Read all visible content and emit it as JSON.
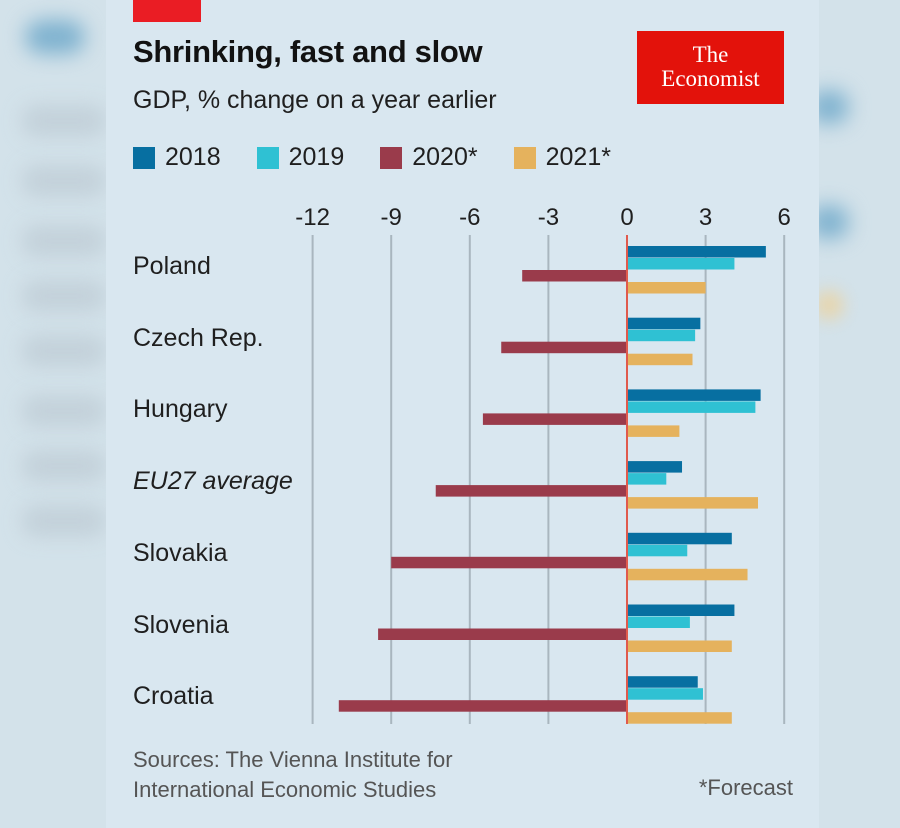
{
  "header": {
    "title": "Shrinking, fast and slow",
    "subtitle": "GDP, % change on a year earlier",
    "logo_line1": "The",
    "logo_line2": "Economist"
  },
  "footer": {
    "source_line1": "Sources: The Vienna Institute for",
    "source_line2": "International Economic Studies",
    "note": "*Forecast"
  },
  "colors": {
    "accent_red": "#e3120b",
    "s2018": "#076fa1",
    "s2019": "#2fc1d3",
    "s2020": "#9a3b4b",
    "s2021": "#e5b25d",
    "zero_line": "#e05a4d",
    "grid": "#a9b6bf"
  },
  "chart_data": {
    "type": "bar",
    "orientation": "horizontal",
    "title": "Shrinking, fast and slow",
    "subtitle": "GDP, % change on a year earlier",
    "xlabel": "",
    "ylabel": "",
    "xlim": [
      -12,
      6
    ],
    "xticks": [
      -12,
      -9,
      -6,
      -3,
      0,
      3,
      6
    ],
    "xtick_labels": [
      "-12",
      "-9",
      "-6",
      "-3",
      "0",
      "3",
      "6"
    ],
    "grid": true,
    "legend_position": "top-left",
    "categories": [
      "Poland",
      "Czech Rep.",
      "Hungary",
      "EU27 average",
      "Slovakia",
      "Slovenia",
      "Croatia"
    ],
    "italic_categories": [
      "EU27 average"
    ],
    "series": [
      {
        "name": "2018",
        "color": "#076fa1",
        "values": [
          5.3,
          2.8,
          5.1,
          2.1,
          4.0,
          4.1,
          2.7
        ]
      },
      {
        "name": "2019",
        "color": "#2fc1d3",
        "values": [
          4.1,
          2.6,
          4.9,
          1.5,
          2.3,
          2.4,
          2.9
        ]
      },
      {
        "name": "2020*",
        "color": "#9a3b4b",
        "values": [
          -4.0,
          -4.8,
          -5.5,
          -7.3,
          -9.0,
          -9.5,
          -11.0
        ]
      },
      {
        "name": "2021*",
        "color": "#e5b25d",
        "values": [
          3.0,
          2.5,
          2.0,
          5.0,
          4.6,
          4.0,
          4.0
        ]
      }
    ],
    "source": "Sources: The Vienna Institute for International Economic Studies",
    "note": "*Forecast"
  }
}
